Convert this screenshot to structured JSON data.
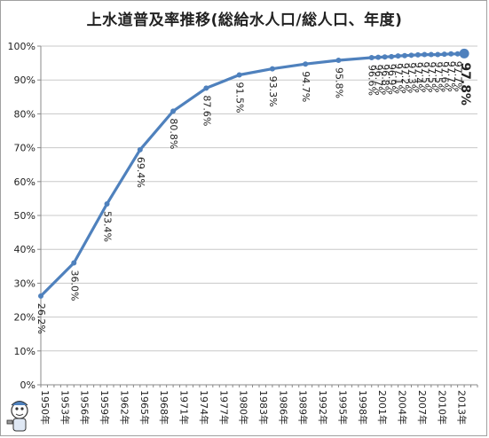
{
  "chart_data": {
    "type": "line",
    "title": "上水道普及率推移(総給水人口/総人口、年度)",
    "ylim": [
      0,
      100
    ],
    "y_unit": "%",
    "y_ticks": [
      "0%",
      "10%",
      "20%",
      "30%",
      "40%",
      "50%",
      "60%",
      "70%",
      "80%",
      "90%",
      "100%"
    ],
    "x_tick_labels": [
      "1950年",
      "1953年",
      "1956年",
      "1959年",
      "1962年",
      "1965年",
      "1968年",
      "1971年",
      "1974年",
      "1977年",
      "1980年",
      "1983年",
      "1986年",
      "1989年",
      "1992年",
      "1995年",
      "1998年",
      "2001年",
      "2004年",
      "2007年",
      "2010年",
      "2013年"
    ],
    "grid": "horizontal",
    "legend": "none",
    "series": [
      {
        "color": "#4f81bd",
        "points": [
          {
            "year": 1950,
            "value": 26.2,
            "label": "26.2%"
          },
          {
            "year": 1955,
            "value": 36.0,
            "label": "36.0%"
          },
          {
            "year": 1960,
            "value": 53.4,
            "label": "53.4%"
          },
          {
            "year": 1965,
            "value": 69.4,
            "label": "69.4%"
          },
          {
            "year": 1970,
            "value": 80.8,
            "label": "80.8%"
          },
          {
            "year": 1975,
            "value": 87.6,
            "label": "87.6%"
          },
          {
            "year": 1980,
            "value": 91.5,
            "label": "91.5%"
          },
          {
            "year": 1985,
            "value": 93.3,
            "label": "93.3%"
          },
          {
            "year": 1990,
            "value": 94.7,
            "label": "94.7%"
          },
          {
            "year": 1995,
            "value": 95.8,
            "label": "95.8%"
          },
          {
            "year": 2000,
            "value": 96.6,
            "label": "96.6%"
          },
          {
            "year": 2001,
            "value": 96.7,
            "label": "96.7%"
          },
          {
            "year": 2002,
            "value": 96.8,
            "label": "96.8%"
          },
          {
            "year": 2003,
            "value": 96.9,
            "label": "96.9%"
          },
          {
            "year": 2004,
            "value": 97.1,
            "label": "97.1%"
          },
          {
            "year": 2005,
            "value": 97.2,
            "label": "97.2%"
          },
          {
            "year": 2006,
            "value": 97.3,
            "label": "97.3%"
          },
          {
            "year": 2007,
            "value": 97.4,
            "label": "97.4%"
          },
          {
            "year": 2008,
            "value": 97.5,
            "label": "97.5%"
          },
          {
            "year": 2009,
            "value": 97.5,
            "label": "97.5%"
          },
          {
            "year": 2010,
            "value": 97.5,
            "label": "97.5%"
          },
          {
            "year": 2011,
            "value": 97.6,
            "label": "97.6%"
          },
          {
            "year": 2012,
            "value": 97.7,
            "label": "97.7%"
          },
          {
            "year": 2013,
            "value": 97.7,
            "label": "97.7%"
          },
          {
            "year": 2014,
            "value": 97.8,
            "label": "97.8%"
          }
        ]
      }
    ]
  }
}
